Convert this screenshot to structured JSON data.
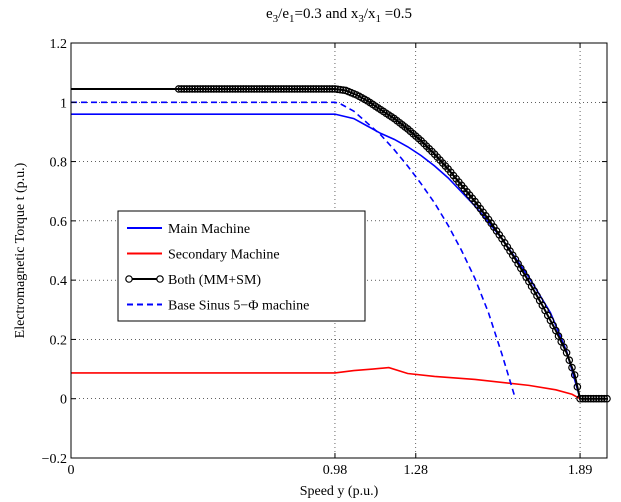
{
  "chart_data": {
    "type": "line",
    "title": {
      "parts": [
        {
          "t": "e",
          "sub": false
        },
        {
          "t": "3",
          "sub": true
        },
        {
          "t": "/e",
          "sub": false
        },
        {
          "t": "1",
          "sub": true
        },
        {
          "t": "=0.3 and x",
          "sub": false
        },
        {
          "t": "3",
          "sub": true
        },
        {
          "t": "/x",
          "sub": false
        },
        {
          "t": "1",
          "sub": true
        },
        {
          "t": " =0.5",
          "sub": false
        }
      ]
    },
    "xlabel": "Speed y (p.u.)",
    "ylabel": "Electromagnetic Torque t (p.u.)",
    "xlim": [
      0,
      1.99
    ],
    "ylim": [
      -0.2,
      1.2
    ],
    "xticks": [
      0,
      0.98,
      1.28,
      1.89
    ],
    "xtick_labels": [
      "0",
      "0.98",
      "1.28",
      "1.89"
    ],
    "yticks": [
      -0.2,
      0,
      0.2,
      0.4,
      0.6,
      0.8,
      1,
      1.2
    ],
    "ytick_labels": [
      "−0.2",
      "0",
      "0.2",
      "0.4",
      "0.6",
      "0.8",
      "1",
      "1.2"
    ],
    "grid": true,
    "legend_position": "center-left",
    "series": [
      {
        "name": "Main Machine",
        "color": "#0000ff",
        "style": "solid",
        "x": [
          0,
          0.98,
          1.05,
          1.1,
          1.15,
          1.2,
          1.25,
          1.3,
          1.35,
          1.4,
          1.5,
          1.6,
          1.7,
          1.78,
          1.84,
          1.89
        ],
        "y": [
          0.96,
          0.96,
          0.945,
          0.92,
          0.895,
          0.875,
          0.85,
          0.82,
          0.785,
          0.745,
          0.65,
          0.54,
          0.41,
          0.29,
          0.16,
          0.0
        ]
      },
      {
        "name": "Secondary Machine",
        "color": "#ff0000",
        "style": "solid",
        "x": [
          0,
          0.98,
          1.05,
          1.12,
          1.18,
          1.25,
          1.35,
          1.5,
          1.7,
          1.8,
          1.86,
          1.89
        ],
        "y": [
          0.087,
          0.087,
          0.095,
          0.1,
          0.105,
          0.085,
          0.075,
          0.065,
          0.045,
          0.03,
          0.015,
          0.0
        ]
      },
      {
        "name": "Both (MM+SM)",
        "color": "#000000",
        "style": "solid",
        "marker": "circle",
        "x": [
          0,
          0.98,
          1.02,
          1.06,
          1.1,
          1.15,
          1.2,
          1.25,
          1.3,
          1.35,
          1.4,
          1.45,
          1.5,
          1.55,
          1.6,
          1.65,
          1.7,
          1.75,
          1.8,
          1.84,
          1.87,
          1.89,
          1.95,
          1.99
        ],
        "y": [
          1.045,
          1.045,
          1.04,
          1.025,
          1.005,
          0.975,
          0.945,
          0.91,
          0.87,
          0.825,
          0.775,
          0.72,
          0.665,
          0.605,
          0.54,
          0.47,
          0.395,
          0.315,
          0.23,
          0.155,
          0.08,
          0.0,
          0.0,
          0.0
        ],
        "marker_x_range": [
          0.4,
          1.99
        ]
      },
      {
        "name": "Base Sinus 5−Φ machine",
        "color": "#0000ff",
        "style": "dashed",
        "x": [
          0,
          0.98,
          1.0,
          1.05,
          1.1,
          1.15,
          1.2,
          1.25,
          1.3,
          1.35,
          1.4,
          1.45,
          1.5,
          1.55,
          1.6,
          1.65
        ],
        "y": [
          1.0,
          1.0,
          0.995,
          0.97,
          0.93,
          0.89,
          0.84,
          0.785,
          0.725,
          0.66,
          0.585,
          0.5,
          0.405,
          0.29,
          0.15,
          0.0
        ]
      }
    ]
  }
}
